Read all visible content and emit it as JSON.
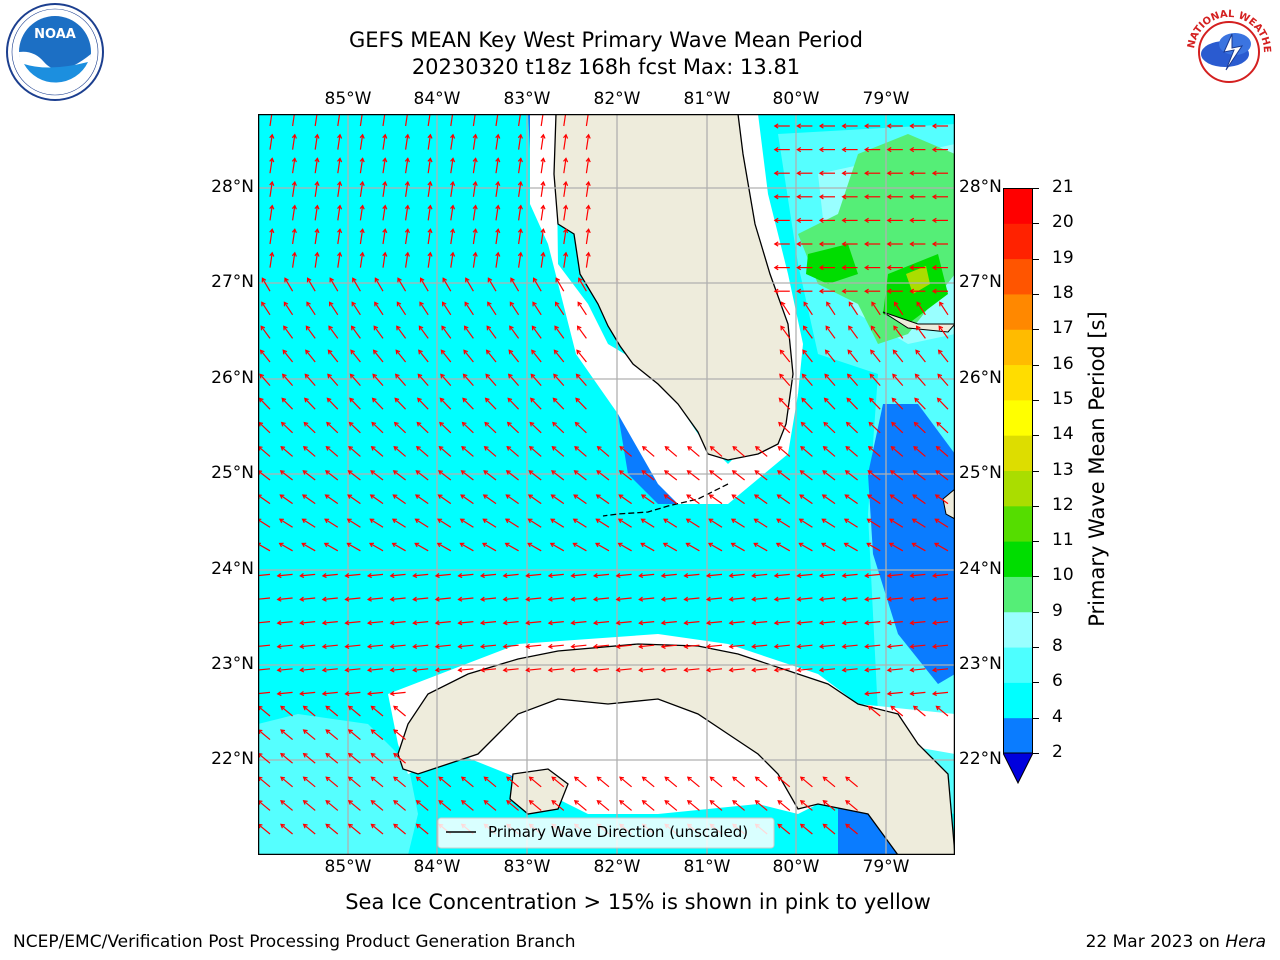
{
  "header": {
    "title_line1": "GEFS MEAN Key West Primary Wave Mean Period",
    "title_line2": "20230320 t18z 168h fcst   Max: 13.81"
  },
  "logos": {
    "left": {
      "name": "NOAA",
      "ring_text": "NATIONAL OCEANIC AND ATMOSPHERIC ADMINISTRATION · U.S. DEPARTMENT OF COMMERCE"
    },
    "right": {
      "ring_text": "NATIONAL WEATHER SERVICE"
    }
  },
  "map": {
    "lon_labels": [
      "85°W",
      "84°W",
      "83°W",
      "82°W",
      "81°W",
      "80°W",
      "79°W"
    ],
    "lat_labels": [
      "28°N",
      "27°N",
      "26°N",
      "25°N",
      "24°N",
      "23°N",
      "22°N"
    ],
    "legend_label": "Primary Wave Direction (unscaled)",
    "land_color": "#eeecdc",
    "arrow_color": "#ff0000"
  },
  "colorbar": {
    "label": "Primary Wave Mean Period [s]",
    "ticks": [
      "21",
      "20",
      "19",
      "18",
      "17",
      "16",
      "15",
      "14",
      "13",
      "12",
      "11",
      "10",
      "9",
      "8",
      "6",
      "4",
      "2"
    ],
    "colors": [
      "#0000dd",
      "#0a7cff",
      "#00ffff",
      "#4dffff",
      "#99ffff",
      "#55ee77",
      "#00dd00",
      "#55dd00",
      "#aadd00",
      "#dddd00",
      "#ffff00",
      "#ffdd00",
      "#ffbb00",
      "#ff8800",
      "#ff5500",
      "#ff2200",
      "#ff0000"
    ]
  },
  "subtitle": "Sea Ice Concentration > 15% is shown in pink to yellow",
  "footer": {
    "left": "NCEP/EMC/Verification Post Processing Product Generation Branch",
    "right_date": "22 Mar 2023 on ",
    "right_host": "Hera"
  }
}
